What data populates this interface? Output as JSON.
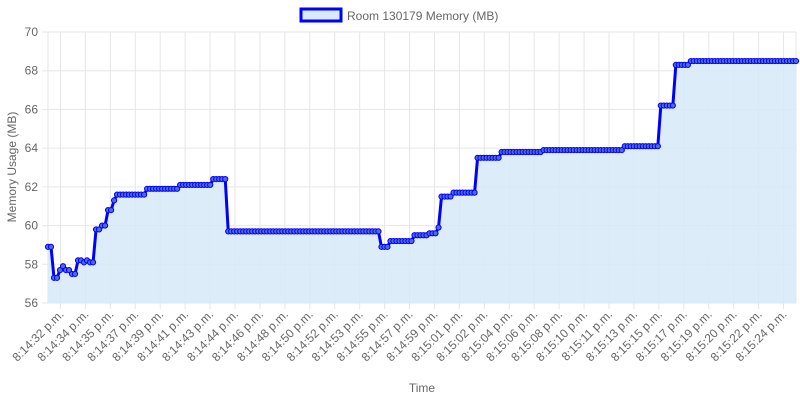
{
  "chart_data": {
    "type": "area",
    "legend": {
      "label": "Room 130179 Memory (MB)",
      "position": "top-center"
    },
    "xlabel": "Time",
    "ylabel": "Memory Usage (MB)",
    "ylim": [
      56,
      70
    ],
    "yticks": [
      "56",
      "58",
      "60",
      "62",
      "64",
      "66",
      "68",
      "70"
    ],
    "grid": true,
    "colors": {
      "line": "#0000ff",
      "fill": "#d6eaf8",
      "point_fill": "#4f6bd9",
      "grid": "#e6e6e6",
      "text": "#666666"
    },
    "xticks": [
      "8:14:32 p.m.",
      "8:14:34 p.m.",
      "8:14:35 p.m.",
      "8:14:37 p.m.",
      "8:14:39 p.m.",
      "8:14:41 p.m.",
      "8:14:43 p.m.",
      "8:14:44 p.m.",
      "8:14:46 p.m.",
      "8:14:48 p.m.",
      "8:14:50 p.m.",
      "8:14:52 p.m.",
      "8:14:53 p.m.",
      "8:14:55 p.m.",
      "8:14:57 p.m.",
      "8:14:59 p.m.",
      "8:15:01 p.m.",
      "8:15:02 p.m.",
      "8:15:04 p.m.",
      "8:15:06 p.m.",
      "8:15:08 p.m.",
      "8:15:10 p.m.",
      "8:15:11 p.m.",
      "8:15:13 p.m.",
      "8:15:15 p.m.",
      "8:15:17 p.m.",
      "8:15:19 p.m.",
      "8:15:20 p.m.",
      "8:15:22 p.m.",
      "8:15:24 p.m."
    ],
    "series": [
      {
        "name": "Room 130179 Memory (MB)",
        "values": [
          58.9,
          58.9,
          57.3,
          57.3,
          57.7,
          57.9,
          57.7,
          57.7,
          57.5,
          57.5,
          58.2,
          58.2,
          58.1,
          58.2,
          58.1,
          58.1,
          59.8,
          59.8,
          60.0,
          60.0,
          60.8,
          60.8,
          61.3,
          61.6,
          61.6,
          61.6,
          61.6,
          61.6,
          61.6,
          61.6,
          61.6,
          61.6,
          61.6,
          61.9,
          61.9,
          61.9,
          61.9,
          61.9,
          61.9,
          61.9,
          61.9,
          61.9,
          61.9,
          61.9,
          62.1,
          62.1,
          62.1,
          62.1,
          62.1,
          62.1,
          62.1,
          62.1,
          62.1,
          62.1,
          62.1,
          62.4,
          62.4,
          62.4,
          62.4,
          62.4,
          59.7,
          59.7,
          59.7,
          59.7,
          59.7,
          59.7,
          59.7,
          59.7,
          59.7,
          59.7,
          59.7,
          59.7,
          59.7,
          59.7,
          59.7,
          59.7,
          59.7,
          59.7,
          59.7,
          59.7,
          59.7,
          59.7,
          59.7,
          59.7,
          59.7,
          59.7,
          59.7,
          59.7,
          59.7,
          59.7,
          59.7,
          59.7,
          59.7,
          59.7,
          59.7,
          59.7,
          59.7,
          59.7,
          59.7,
          59.7,
          59.7,
          59.7,
          59.7,
          59.7,
          59.7,
          59.7,
          59.7,
          59.7,
          59.7,
          59.7,
          59.7,
          58.9,
          58.9,
          58.9,
          59.2,
          59.2,
          59.2,
          59.2,
          59.2,
          59.2,
          59.2,
          59.2,
          59.5,
          59.5,
          59.5,
          59.5,
          59.5,
          59.6,
          59.6,
          59.6,
          59.9,
          61.5,
          61.5,
          61.5,
          61.5,
          61.7,
          61.7,
          61.7,
          61.7,
          61.7,
          61.7,
          61.7,
          61.7,
          63.5,
          63.5,
          63.5,
          63.5,
          63.5,
          63.5,
          63.5,
          63.5,
          63.8,
          63.8,
          63.8,
          63.8,
          63.8,
          63.8,
          63.8,
          63.8,
          63.8,
          63.8,
          63.8,
          63.8,
          63.8,
          63.8,
          63.9,
          63.9,
          63.9,
          63.9,
          63.9,
          63.9,
          63.9,
          63.9,
          63.9,
          63.9,
          63.9,
          63.9,
          63.9,
          63.9,
          63.9,
          63.9,
          63.9,
          63.9,
          63.9,
          63.9,
          63.9,
          63.9,
          63.9,
          63.9,
          63.9,
          63.9,
          63.9,
          64.1,
          64.1,
          64.1,
          64.1,
          64.1,
          64.1,
          64.1,
          64.1,
          64.1,
          64.1,
          64.1,
          64.1,
          66.2,
          66.2,
          66.2,
          66.2,
          66.2,
          68.3,
          68.3,
          68.3,
          68.3,
          68.3,
          68.5,
          68.5,
          68.5,
          68.5,
          68.5,
          68.5,
          68.5,
          68.5,
          68.5,
          68.5,
          68.5,
          68.5,
          68.5,
          68.5,
          68.5,
          68.5,
          68.5,
          68.5,
          68.5,
          68.5,
          68.5,
          68.5,
          68.5,
          68.5,
          68.5,
          68.5,
          68.5,
          68.5,
          68.5,
          68.5,
          68.5,
          68.5,
          68.5,
          68.5,
          68.5,
          68.5
        ]
      }
    ]
  }
}
